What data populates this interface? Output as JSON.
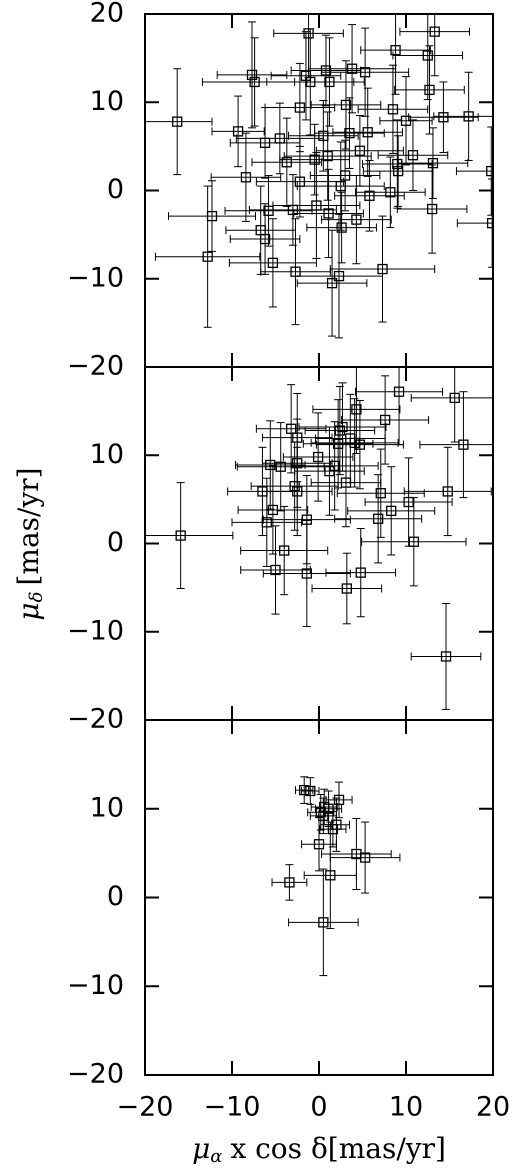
{
  "chart_data": [
    {
      "type": "scatter",
      "xlim": [
        -20,
        20
      ],
      "xticks": [
        -20,
        -10,
        0,
        10,
        20
      ],
      "ylim": [
        -20,
        20
      ],
      "yticks": [
        20,
        10,
        0,
        {
          "value": -10,
          "label": "−10"
        },
        {
          "value": -20,
          "label": "−20"
        }
      ],
      "x": [
        -16.3,
        -9.3,
        -12.3,
        -12.8,
        -8.4,
        -6.7,
        -6.2,
        -5.8,
        -5.3,
        -7.7,
        -7.4,
        -6.2,
        -4.5,
        -3.7,
        -3.0,
        -2.7,
        -2.2,
        -2.2,
        -1.5,
        -1.2,
        -1.0,
        -0.5,
        -0.3,
        0.5,
        0.8,
        1.0,
        1.2,
        1.1,
        1.5,
        2.3,
        2.6,
        2.5,
        3.1,
        3.0,
        3.5,
        3.8,
        4.3,
        4.7,
        5.3,
        5.6,
        5.8,
        7.3,
        8.2,
        8.5,
        8.8,
        9.0,
        9.1,
        10.0,
        10.8,
        12.5,
        12.7,
        13.0,
        13.1,
        13.3,
        14.3,
        17.2,
        19.8,
        19.9
      ],
      "values": [
        7.8,
        6.7,
        -2.9,
        -7.5,
        1.5,
        -4.5,
        -5.5,
        -2.3,
        -8.2,
        13.1,
        12.3,
        5.4,
        5.9,
        3.2,
        -2.2,
        -9.2,
        9.4,
        1.0,
        13.0,
        17.8,
        12.3,
        3.5,
        -1.7,
        6.2,
        13.6,
        3.9,
        12.3,
        -2.6,
        -10.5,
        -9.7,
        -4.2,
        0.5,
        9.7,
        1.7,
        6.5,
        13.8,
        -3.3,
        4.5,
        13.4,
        6.6,
        -0.6,
        -8.9,
        -0.2,
        9.2,
        15.9,
        3.0,
        2.2,
        7.9,
        4.0,
        15.3,
        11.4,
        -2.1,
        3.1,
        18.0,
        8.3,
        8.4,
        2.2,
        -3.7
      ],
      "xerr": [
        4,
        3,
        5,
        6,
        4,
        4,
        4,
        5,
        5,
        4,
        6,
        4,
        5,
        4,
        5,
        4,
        4,
        5,
        4,
        4,
        5,
        4,
        5,
        4,
        4,
        5,
        4,
        4,
        4,
        5,
        4,
        5,
        4,
        4,
        4,
        5,
        4,
        5,
        5,
        4,
        4,
        6,
        4,
        4,
        4,
        4,
        4,
        3,
        4,
        4,
        4,
        4,
        4,
        4,
        4,
        4,
        4,
        4
      ],
      "yerr": [
        6,
        4,
        4,
        8,
        5,
        5,
        4,
        4,
        5,
        6,
        5,
        4,
        4,
        5,
        4,
        6,
        5,
        4,
        5,
        5,
        6,
        4,
        6,
        4,
        4,
        5,
        5,
        5,
        6,
        7,
        4,
        5,
        5,
        4,
        4,
        5,
        5,
        4,
        5,
        5,
        4,
        6,
        4,
        5,
        5,
        5,
        4,
        5,
        4,
        5,
        5,
        5,
        4,
        5,
        4,
        5,
        5,
        5
      ]
    },
    {
      "type": "scatter",
      "xlim": [
        -20,
        20
      ],
      "xticks": [
        -20,
        -10,
        0,
        10,
        20
      ],
      "ylim": [
        -20,
        20
      ],
      "yticks": [
        10,
        0,
        {
          "value": -10,
          "label": "−10"
        },
        {
          "value": -20,
          "label": "−20"
        }
      ],
      "ylabel": {
        "symbol": "μ",
        "subscript": "δ",
        "unit": "[mas/yr]"
      },
      "x": [
        -15.9,
        -6.5,
        -6.0,
        -5.6,
        -5.3,
        -5.0,
        -4.4,
        -4.0,
        -3.2,
        -2.8,
        -2.5,
        -2.5,
        -2.5,
        -1.4,
        -1.4,
        -0.1,
        1.2,
        1.8,
        2.2,
        2.4,
        2.7,
        3.1,
        3.2,
        3.6,
        4.1,
        4.3,
        4.7,
        4.8,
        6.8,
        7.1,
        7.6,
        8.3,
        9.2,
        10.3,
        10.9,
        14.8,
        14.6,
        15.6,
        16.6
      ],
      "values": [
        0.9,
        5.9,
        2.4,
        8.9,
        3.8,
        -3.0,
        8.7,
        -0.8,
        13.0,
        6.5,
        12.0,
        9.1,
        5.9,
        2.7,
        -3.4,
        9.8,
        8.2,
        8.8,
        11.3,
        12.8,
        13.2,
        6.9,
        -5.1,
        11.9,
        11.4,
        15.2,
        11.2,
        -3.3,
        2.8,
        5.7,
        14.0,
        3.7,
        17.2,
        4.7,
        0.2,
        5.9,
        -12.8,
        16.5,
        11.2
      ],
      "xerr": [
        6,
        4,
        4,
        4,
        4,
        4,
        5,
        5,
        4,
        5,
        4,
        4,
        4,
        5,
        5,
        4,
        4,
        5,
        4,
        4,
        5,
        4,
        4,
        4,
        5,
        5,
        5,
        4,
        5,
        5,
        5,
        5,
        5,
        5,
        6,
        5,
        4,
        5,
        5
      ],
      "yerr": [
        6,
        5,
        5,
        5,
        5,
        5,
        5,
        5,
        5,
        5,
        5,
        5,
        5,
        5,
        6,
        5,
        5,
        5,
        5,
        5,
        5,
        5,
        4,
        5,
        5,
        5,
        5,
        5,
        5,
        5,
        5,
        5,
        6,
        5,
        5,
        5,
        6,
        5,
        6
      ]
    },
    {
      "type": "scatter",
      "xlim": [
        -20,
        20
      ],
      "ylim": [
        -20,
        20
      ],
      "xticks": [
        {
          "value": -20,
          "label": "−20"
        },
        {
          "value": -10,
          "label": "−10"
        },
        0,
        10,
        20
      ],
      "yticks": [
        10,
        0,
        {
          "value": -10,
          "label": "−10"
        },
        {
          "value": -20,
          "label": "−20"
        }
      ],
      "xlabel": {
        "symbol": "μ",
        "subscript": "α",
        "rest": "x cos δ[mas/yr]"
      },
      "x": [
        -1.7,
        -1.0,
        -3.4,
        0.0,
        0.2,
        0.5,
        0.6,
        1.1,
        1.3,
        1.6,
        2.0,
        2.3,
        4.3,
        5.3,
        0.5
      ],
      "values": [
        12.1,
        12.0,
        1.7,
        6.0,
        9.6,
        9.2,
        10.2,
        10.0,
        2.5,
        7.7,
        8.2,
        11.0,
        4.9,
        4.5,
        -2.8
      ],
      "xerr": [
        1,
        1,
        2,
        2,
        1.5,
        1.5,
        1.5,
        1.5,
        3,
        1.5,
        1.5,
        1.5,
        4,
        4,
        4
      ],
      "yerr": [
        1.5,
        1.5,
        2,
        3,
        2,
        2,
        2,
        2,
        6,
        2,
        3,
        2,
        4,
        4,
        6
      ]
    }
  ]
}
